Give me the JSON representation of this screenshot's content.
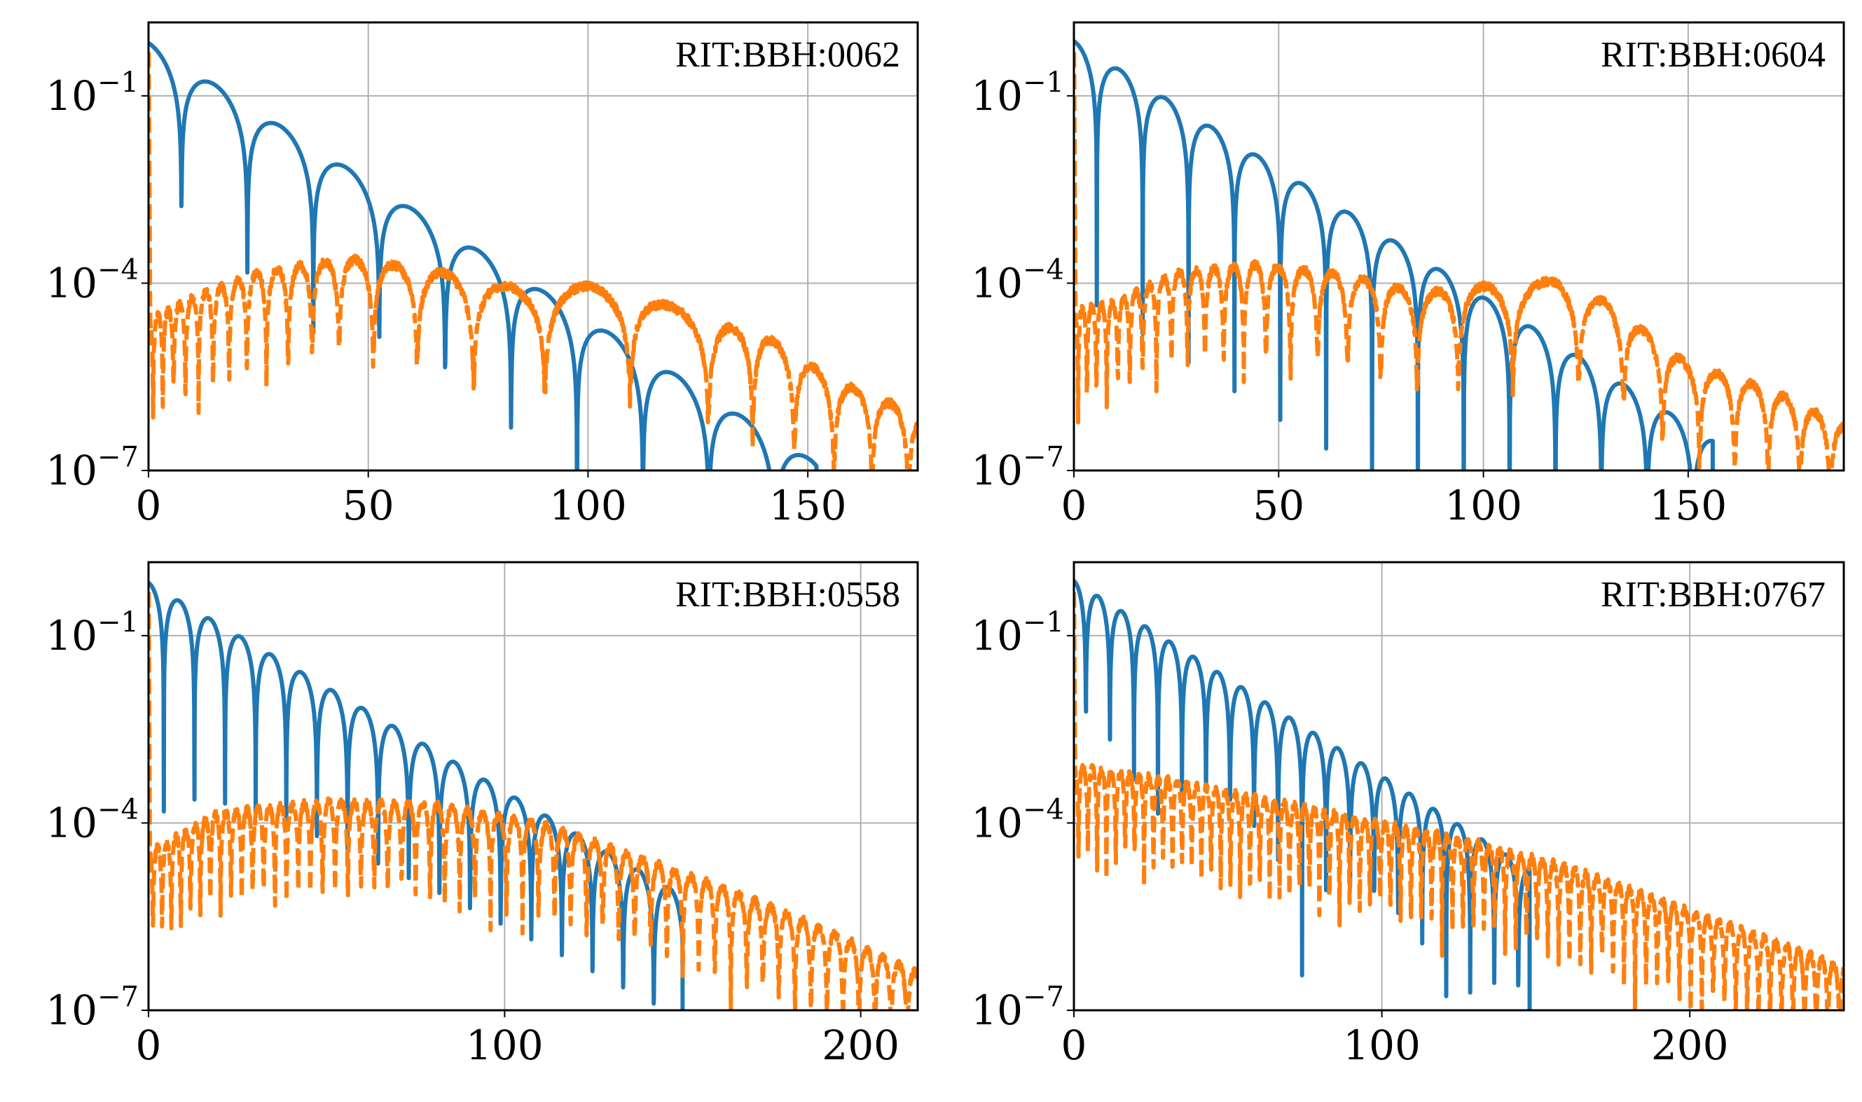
{
  "chart_data": [
    {
      "type": "line",
      "label": "RIT:BBH:0062",
      "yscale": "log",
      "xlim": [
        0,
        175
      ],
      "ylim": [
        1e-07,
        1.5
      ],
      "xticks": [
        "0",
        "50",
        "100",
        "150"
      ],
      "yticks": [
        {
          "base": "10",
          "exp": "−1"
        },
        {
          "base": "10",
          "exp": "−4"
        },
        {
          "base": "10",
          "exp": "−7"
        }
      ],
      "grid": true,
      "series": [
        {
          "color": "#1f77b4",
          "style": "solid",
          "envelope_start": 0.7,
          "decay_time": 9.8,
          "half_period": 7.5,
          "cutoff": 152,
          "x": [],
          "y": []
        },
        {
          "color": "#ff7f0e",
          "style": "dashed",
          "envelope": [
            [
              2,
              3e-05
            ],
            [
              10,
              6e-05
            ],
            [
              25,
              0.00015
            ],
            [
              45,
              0.00025
            ],
            [
              65,
              0.00016
            ],
            [
              85,
              8e-05
            ],
            [
              100,
              9e-05
            ],
            [
              112,
              8e-05
            ],
            [
              125,
              2.5e-05
            ],
            [
              140,
              1.5e-05
            ],
            [
              155,
              3e-06
            ],
            [
              175,
              8e-07
            ]
          ],
          "half_period": [
            [
              0,
              2
            ],
            [
              40,
              6
            ],
            [
              80,
              16
            ],
            [
              115,
              22
            ],
            [
              130,
              10
            ],
            [
              175,
              8
            ]
          ],
          "x": [],
          "y": []
        }
      ]
    },
    {
      "type": "line",
      "label": "RIT:BBH:0604",
      "yscale": "log",
      "xlim": [
        0,
        188
      ],
      "ylim": [
        1e-07,
        1.5
      ],
      "xticks": [
        "0",
        "50",
        "100",
        "150"
      ],
      "yticks": [
        {
          "base": "10",
          "exp": "−1"
        },
        {
          "base": "10",
          "exp": "−4"
        },
        {
          "base": "10",
          "exp": "−7"
        }
      ],
      "grid": true,
      "series": [
        {
          "color": "#1f77b4",
          "style": "solid",
          "envelope_start": 0.75,
          "decay_time": 10.6,
          "half_period": 5.6,
          "cutoff": 156,
          "x": [],
          "y": []
        },
        {
          "color": "#ff7f0e",
          "style": "dashed",
          "envelope": [
            [
              2,
              4e-05
            ],
            [
              10,
              5e-05
            ],
            [
              25,
              0.00015
            ],
            [
              45,
              0.0002
            ],
            [
              65,
              0.00014
            ],
            [
              85,
              7e-05
            ],
            [
              100,
              9e-05
            ],
            [
              118,
              0.00011
            ],
            [
              130,
              5e-05
            ],
            [
              150,
              5e-06
            ],
            [
              170,
              2e-06
            ],
            [
              188,
              5e-07
            ]
          ],
          "half_period": [
            [
              0,
              2
            ],
            [
              40,
              5
            ],
            [
              90,
              10
            ],
            [
              115,
              18
            ],
            [
              130,
              10
            ],
            [
              188,
              7
            ]
          ],
          "x": [],
          "y": []
        }
      ]
    },
    {
      "type": "line",
      "label": "RIT:BBH:0558",
      "yscale": "log",
      "xlim": [
        0,
        216
      ],
      "ylim": [
        1e-07,
        1.5
      ],
      "xticks": [
        "0",
        "100",
        "200"
      ],
      "yticks": [
        {
          "base": "10",
          "exp": "−1"
        },
        {
          "base": "10",
          "exp": "−4"
        },
        {
          "base": "10",
          "exp": "−7"
        }
      ],
      "grid": true,
      "series": [
        {
          "color": "#1f77b4",
          "style": "solid",
          "envelope_start": 0.7,
          "decay_time": 13.0,
          "half_period": 4.3,
          "cutoff": 150,
          "x": [],
          "y": []
        },
        {
          "color": "#ff7f0e",
          "style": "dashed",
          "envelope": [
            [
              2,
              4e-05
            ],
            [
              20,
              0.00015
            ],
            [
              50,
              0.00022
            ],
            [
              80,
              0.0002
            ],
            [
              110,
              0.0001
            ],
            [
              130,
              4e-05
            ],
            [
              160,
              1e-05
            ],
            [
              190,
              2e-06
            ],
            [
              216,
              4e-07
            ]
          ],
          "half_period": [
            [
              0,
              2.5
            ],
            [
              100,
              4.5
            ],
            [
              216,
              4.5
            ]
          ],
          "x": [],
          "y": []
        }
      ]
    },
    {
      "type": "line",
      "label": "RIT:BBH:0767",
      "yscale": "log",
      "xlim": [
        0,
        250
      ],
      "ylim": [
        1e-07,
        1.5
      ],
      "xticks": [
        "0",
        "100",
        "200"
      ],
      "yticks": [
        {
          "base": "10",
          "exp": "−1"
        },
        {
          "base": "10",
          "exp": "−4"
        },
        {
          "base": "10",
          "exp": "−7"
        }
      ],
      "grid": true,
      "series": [
        {
          "color": "#1f77b4",
          "style": "solid",
          "envelope_start": 0.75,
          "decay_time": 13.9,
          "half_period": 3.9,
          "cutoff": 148,
          "x": [],
          "y": []
        },
        {
          "color": "#ff7f0e",
          "style": "dashed",
          "envelope": [
            [
              2,
              0.0008
            ],
            [
              30,
              0.0005
            ],
            [
              60,
              0.00025
            ],
            [
              100,
              0.0001
            ],
            [
              130,
              5e-05
            ],
            [
              160,
              2e-05
            ],
            [
              200,
              4e-06
            ],
            [
              250,
              5e-07
            ]
          ],
          "half_period": [
            [
              0,
              3
            ],
            [
              250,
              3.8
            ]
          ],
          "x": [],
          "y": []
        }
      ]
    }
  ]
}
